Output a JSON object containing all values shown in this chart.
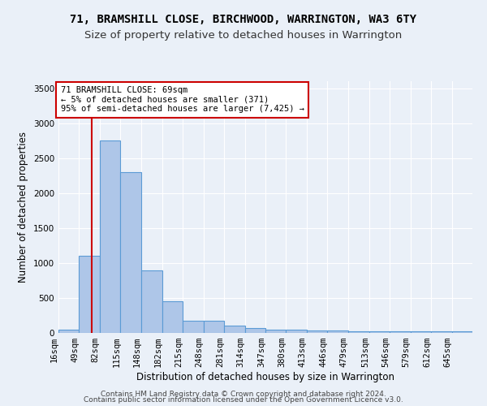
{
  "title": "71, BRAMSHILL CLOSE, BIRCHWOOD, WARRINGTON, WA3 6TY",
  "subtitle": "Size of property relative to detached houses in Warrington",
  "xlabel": "Distribution of detached houses by size in Warrington",
  "ylabel": "Number of detached properties",
  "footnote1": "Contains HM Land Registry data © Crown copyright and database right 2024.",
  "footnote2": "Contains public sector information licensed under the Open Government Licence v3.0.",
  "annotation_line1": "71 BRAMSHILL CLOSE: 69sqm",
  "annotation_line2": "← 5% of detached houses are smaller (371)",
  "annotation_line3": "95% of semi-detached houses are larger (7,425) →",
  "bin_edges": [
    16,
    49,
    82,
    115,
    148,
    182,
    215,
    248,
    281,
    314,
    347,
    380,
    413,
    446,
    479,
    513,
    546,
    579,
    612,
    645,
    678
  ],
  "bar_heights": [
    50,
    1100,
    2750,
    2300,
    900,
    450,
    175,
    175,
    100,
    75,
    50,
    50,
    30,
    30,
    20,
    20,
    20,
    20,
    20,
    20
  ],
  "bar_color": "#aec6e8",
  "bar_edge_color": "#5b9bd5",
  "red_line_x": 69,
  "ylim": [
    0,
    3600
  ],
  "yticks": [
    0,
    500,
    1000,
    1500,
    2000,
    2500,
    3000,
    3500
  ],
  "bg_color": "#eaf0f8",
  "grid_color": "#ffffff",
  "annotation_box_color": "#ffffff",
  "annotation_box_edge": "#cc0000",
  "red_line_color": "#cc0000",
  "title_fontsize": 10,
  "subtitle_fontsize": 9.5,
  "axis_label_fontsize": 8.5,
  "tick_fontsize": 7.5,
  "annotation_fontsize": 7.5,
  "footnote_fontsize": 6.5
}
